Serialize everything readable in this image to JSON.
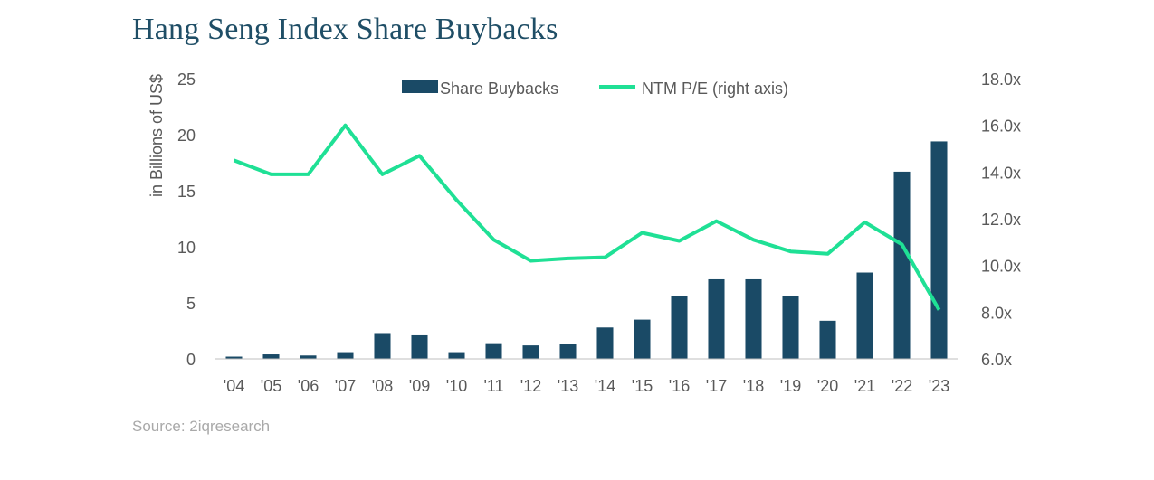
{
  "colors": {
    "bar": "#1a4a66",
    "line": "#1fe095",
    "title": "#1f4e66"
  },
  "chart_data": {
    "type": "bar+line",
    "title": "Hang Seng Index Share Buybacks",
    "categories": [
      "'04",
      "'05",
      "'06",
      "'07",
      "'08",
      "'09",
      "'10",
      "'11",
      "'12",
      "'13",
      "'14",
      "'15",
      "'16",
      "'17",
      "'18",
      "'19",
      "'20",
      "'21",
      "'22",
      "'23"
    ],
    "series": [
      {
        "name": "Share Buybacks",
        "type": "bar",
        "axis": "left",
        "values": [
          0.2,
          0.4,
          0.3,
          0.6,
          2.3,
          2.1,
          0.6,
          1.4,
          1.2,
          1.3,
          2.8,
          3.5,
          5.6,
          7.1,
          7.1,
          5.6,
          3.4,
          7.7,
          16.7,
          19.4
        ]
      },
      {
        "name": "NTM P/E (right axis)",
        "type": "line",
        "axis": "right",
        "values": [
          14.5,
          13.9,
          13.9,
          16.0,
          13.9,
          14.7,
          12.8,
          11.1,
          10.2,
          10.3,
          10.35,
          11.4,
          11.05,
          11.9,
          11.1,
          10.6,
          10.5,
          11.85,
          10.9,
          8.1
        ]
      }
    ],
    "ylabel": "in Billions of US$",
    "ylim": [
      0,
      25
    ],
    "yticks": [
      "0",
      "5",
      "10",
      "15",
      "20",
      "25"
    ],
    "y2lim": [
      6,
      18
    ],
    "y2ticks": [
      "6.0x",
      "8.0x",
      "10.0x",
      "12.0x",
      "14.0x",
      "16.0x",
      "18.0x"
    ],
    "legend": "top-center",
    "grid": false
  },
  "source": "Source: 2iqresearch"
}
